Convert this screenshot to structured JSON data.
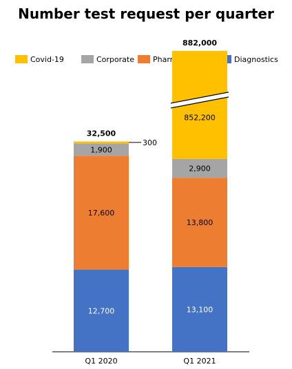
{
  "chart_data": {
    "type": "bar",
    "stacked": true,
    "title": "Number test request per quarter",
    "categories": [
      "Q1 2020",
      "Q1 2021"
    ],
    "series": [
      {
        "name": "Diagnostics",
        "color": "#4472C4",
        "values": [
          12700,
          13100
        ],
        "labels": [
          "12,700",
          "13,100"
        ]
      },
      {
        "name": "Pharmaceutical",
        "color": "#ED7D31",
        "values": [
          17600,
          13800
        ],
        "labels": [
          "17,600",
          "13,800"
        ]
      },
      {
        "name": "Corporate",
        "color": "#A5A5A5",
        "values": [
          1900,
          2900
        ],
        "labels": [
          "1,900",
          "2,900"
        ]
      },
      {
        "name": "Covid-19",
        "color": "#FFC000",
        "values": [
          300,
          852200
        ],
        "labels": [
          "300",
          "852,200"
        ]
      }
    ],
    "totals": [
      "32,500",
      "882,000"
    ],
    "legend_order": [
      "Covid-19",
      "Corporate",
      "Pharmaceutical",
      "Diagnostics"
    ],
    "legend_position": "top",
    "axis_break": "Q1 2021 Covid-19 segment",
    "grid": false
  }
}
